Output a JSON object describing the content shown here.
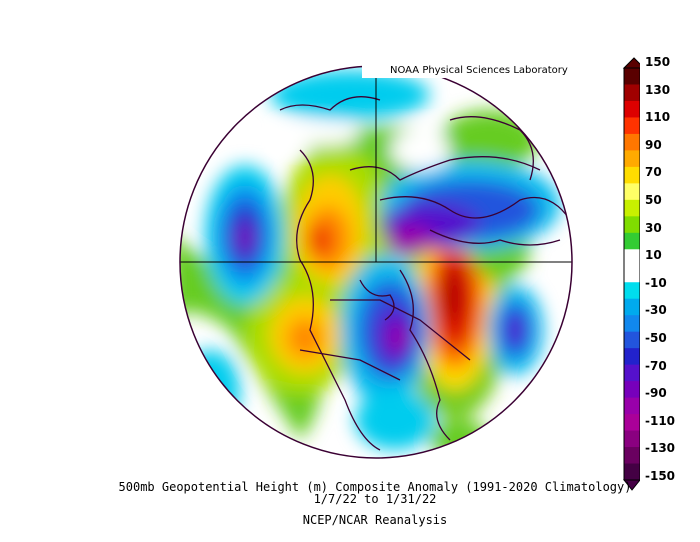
{
  "credit": "NOAA Physical Sciences Laboratory",
  "title_line1": "500mb Geopotential Height (m) Composite Anomaly (1991-2020 Climatology)",
  "title_line2": "1/7/22  to 1/31/22",
  "title_line3": "NCEP/NCAR Reanalysis",
  "colorbar": {
    "labels": [
      "150",
      "130",
      "110",
      "90",
      "70",
      "50",
      "30",
      "10",
      "-10",
      "-30",
      "-50",
      "-70",
      "-90",
      "-110",
      "-130",
      "-150"
    ],
    "colors": [
      "#5a0000",
      "#a00000",
      "#dd0000",
      "#ff3300",
      "#ff7700",
      "#ffaa00",
      "#ffdd00",
      "#ffff66",
      "#c8f000",
      "#80dd00",
      "#33cc33",
      "#ffffff",
      "#ffffff",
      "#00ddee",
      "#00aaee",
      "#1188ee",
      "#2255dd",
      "#2222cc",
      "#5511cc",
      "#7700bb",
      "#9900aa",
      "#aa0099",
      "#8a0080",
      "#6a0060",
      "#440044"
    ]
  }
}
